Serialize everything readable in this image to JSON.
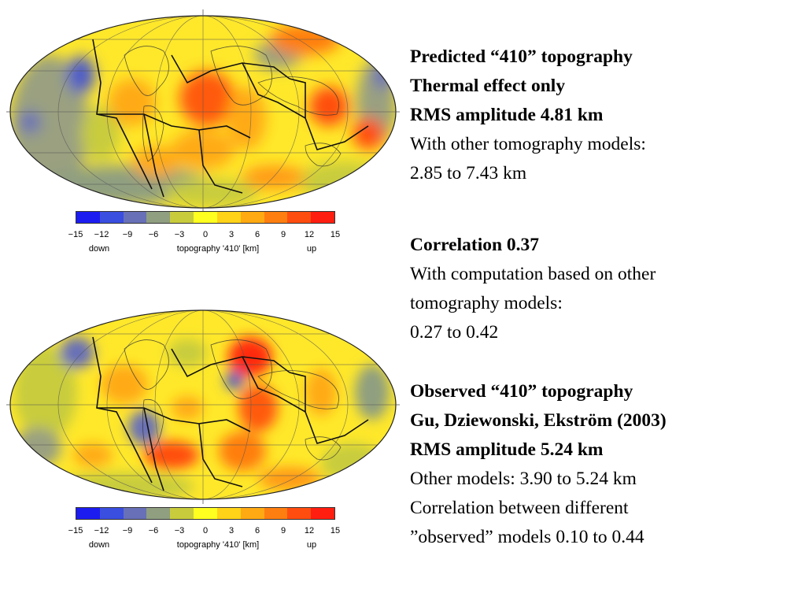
{
  "maps": [
    {
      "id": "predicted",
      "colorbar": {
        "colors": [
          "#1c1cf0",
          "#3a4ee0",
          "#6870b8",
          "#8f9f80",
          "#c8cc3c",
          "#ffff20",
          "#ffd318",
          "#ffaa12",
          "#ff7e10",
          "#ff4d10",
          "#ff1e10"
        ],
        "ticks": [
          "−15",
          "−12",
          "−9",
          "−6",
          "−3",
          "0",
          "3",
          "6",
          "9",
          "12",
          "15"
        ],
        "label_down": "down",
        "label_center": "topography '410' [km]",
        "label_up": "up"
      }
    },
    {
      "id": "observed",
      "colorbar": {
        "colors": [
          "#1c1cf0",
          "#3a4ee0",
          "#6870b8",
          "#8f9f80",
          "#c8cc3c",
          "#ffff20",
          "#ffd318",
          "#ffaa12",
          "#ff7e10",
          "#ff4d10",
          "#ff1e10"
        ],
        "ticks": [
          "−15",
          "−12",
          "−9",
          "−6",
          "−3",
          "0",
          "3",
          "6",
          "9",
          "12",
          "15"
        ],
        "label_down": "down",
        "label_center": "topography '410' [km]",
        "label_up": "up"
      }
    }
  ],
  "text": {
    "predicted": {
      "title": "Predicted “410” topography",
      "subtitle": "Thermal effect only",
      "rms": "RMS amplitude 4.81 km",
      "other_intro": "With other tomography models:",
      "other_range": "2.85 to 7.43 km"
    },
    "correlation": {
      "title": "Correlation 0.37",
      "line1": "With computation based on other",
      "line2": "tomography models:",
      "range": "0.27 to 0.42"
    },
    "observed": {
      "title": "Observed “410” topography",
      "source": "Gu, Dziewonski, Ekström (2003)",
      "rms": "RMS amplitude 5.24 km",
      "other_models": "Other models: 3.90 to 5.24 km",
      "corr_line1": "Correlation between different",
      "corr_line2": "”observed” models 0.10 to 0.44"
    }
  }
}
